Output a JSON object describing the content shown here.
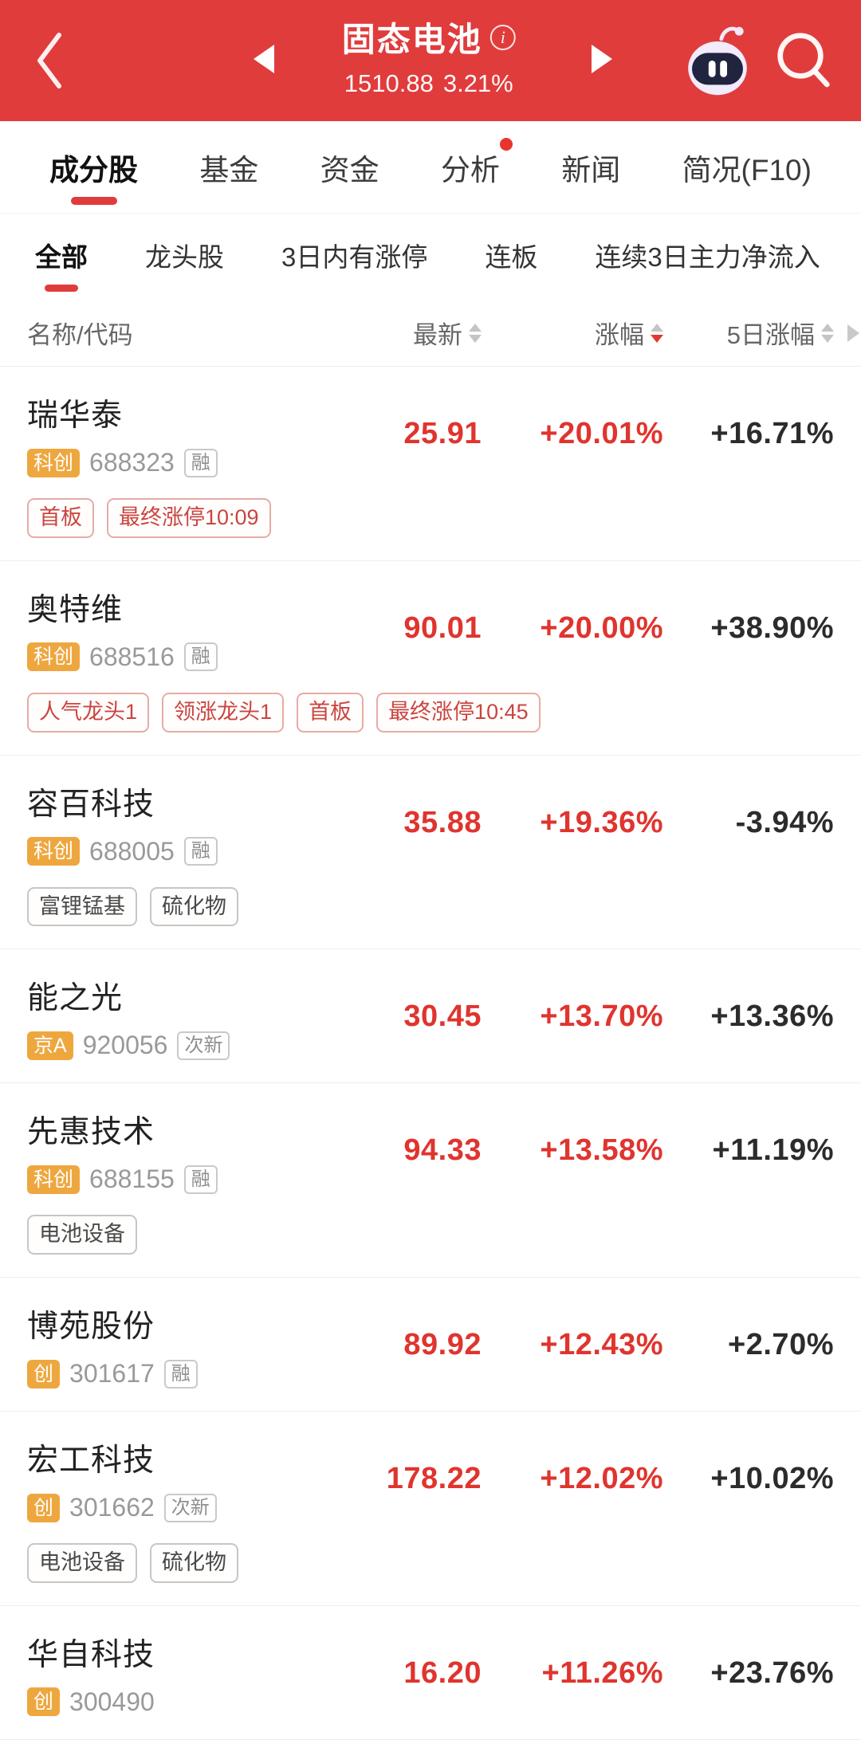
{
  "colors": {
    "accent_red": "#e03c3c",
    "price_red": "#e0342e",
    "badge_orange": "#eea73f",
    "tag_red": "#ca4540"
  },
  "header": {
    "title": "固态电池",
    "index_value": "1510.88",
    "index_change": "3.21%"
  },
  "tabs": {
    "items": [
      {
        "label": "成分股",
        "active": true
      },
      {
        "label": "基金"
      },
      {
        "label": "资金"
      },
      {
        "label": "分析",
        "dot": true
      },
      {
        "label": "新闻"
      },
      {
        "label": "简况(F10)"
      }
    ]
  },
  "subtabs": {
    "items": [
      {
        "label": "全部",
        "active": true
      },
      {
        "label": "龙头股"
      },
      {
        "label": "3日内有涨停"
      },
      {
        "label": "连板"
      },
      {
        "label": "连续3日主力净流入"
      }
    ]
  },
  "table": {
    "name_column": "名称/代码",
    "columns": [
      {
        "label": "最新",
        "sort": "none"
      },
      {
        "label": "涨幅",
        "sort": "desc"
      },
      {
        "label": "5日涨幅",
        "sort": "none"
      }
    ]
  },
  "rows": [
    {
      "name": "瑞华泰",
      "market": "科创",
      "code": "688323",
      "flag": "融",
      "price": "25.91",
      "change": "+20.01%",
      "change5d": "+16.71%",
      "tags": [
        {
          "label": "首板",
          "style": "red"
        },
        {
          "label": "最终涨停10:09",
          "style": "red"
        }
      ]
    },
    {
      "name": "奥特维",
      "market": "科创",
      "code": "688516",
      "flag": "融",
      "price": "90.01",
      "change": "+20.00%",
      "change5d": "+38.90%",
      "tags": [
        {
          "label": "人气龙头1",
          "style": "red"
        },
        {
          "label": "领涨龙头1",
          "style": "red"
        },
        {
          "label": "首板",
          "style": "red"
        },
        {
          "label": "最终涨停10:45",
          "style": "red"
        }
      ]
    },
    {
      "name": "容百科技",
      "market": "科创",
      "code": "688005",
      "flag": "融",
      "price": "35.88",
      "change": "+19.36%",
      "change5d": "-3.94%",
      "tags": [
        {
          "label": "富锂锰基",
          "style": "gray"
        },
        {
          "label": "硫化物",
          "style": "gray"
        }
      ]
    },
    {
      "name": "能之光",
      "market": "京A",
      "code": "920056",
      "flag": "次新",
      "price": "30.45",
      "change": "+13.70%",
      "change5d": "+13.36%",
      "tags": []
    },
    {
      "name": "先惠技术",
      "market": "科创",
      "code": "688155",
      "flag": "融",
      "price": "94.33",
      "change": "+13.58%",
      "change5d": "+11.19%",
      "tags": [
        {
          "label": "电池设备",
          "style": "gray"
        }
      ]
    },
    {
      "name": "博苑股份",
      "market": "创",
      "code": "301617",
      "flag": "融",
      "price": "89.92",
      "change": "+12.43%",
      "change5d": "+2.70%",
      "tags": []
    },
    {
      "name": "宏工科技",
      "market": "创",
      "code": "301662",
      "flag": "次新",
      "price": "178.22",
      "change": "+12.02%",
      "change5d": "+10.02%",
      "tags": [
        {
          "label": "电池设备",
          "style": "gray"
        },
        {
          "label": "硫化物",
          "style": "gray"
        }
      ]
    },
    {
      "name": "华自科技",
      "market": "创",
      "code": "300490",
      "flag": "",
      "price": "16.20",
      "change": "+11.26%",
      "change5d": "+23.76%",
      "tags": []
    }
  ]
}
